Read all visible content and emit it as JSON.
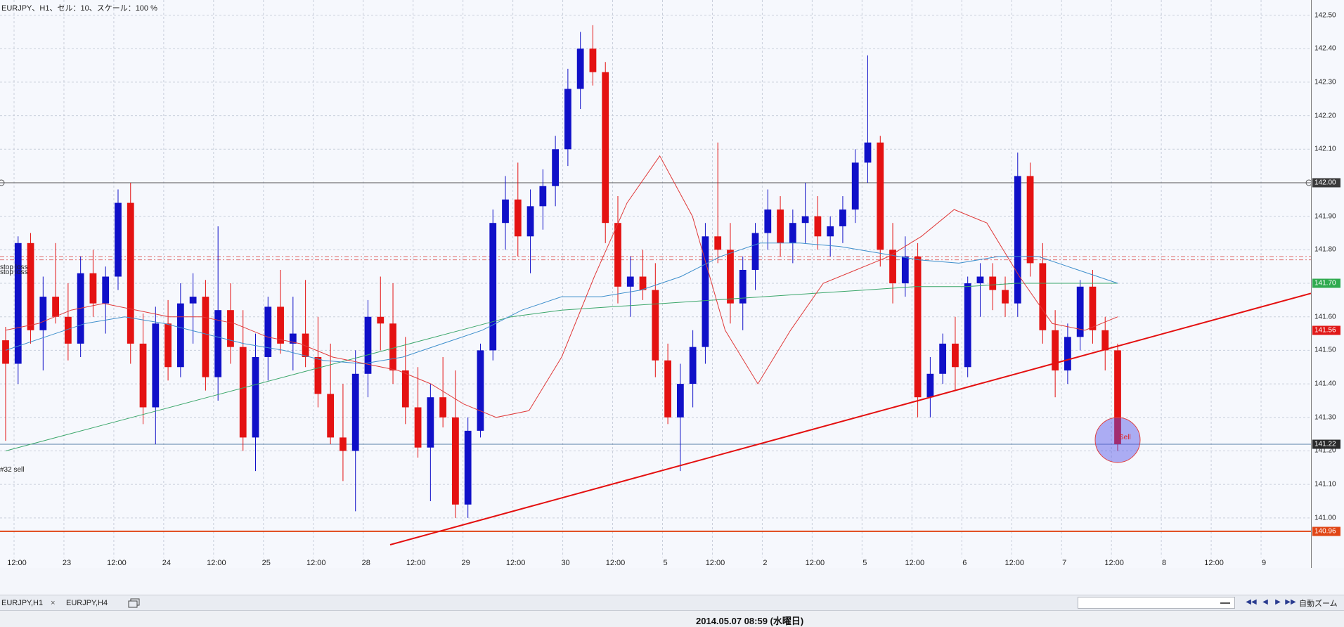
{
  "window_title": "EURJPY、H1、セル：10、スケール：100 %",
  "colors": {
    "bull": "#1010c8",
    "bear": "#e41212",
    "ma_fast": "#e03a3a",
    "ma_mid": "#3e8fcc",
    "ma_slow": "#3aa66a",
    "trendline": "#e41010",
    "grid": "#c9cfdb"
  },
  "price_axis": {
    "ticks": [
      "142.50",
      "142.40",
      "142.30",
      "142.20",
      "142.10",
      "142.00",
      "141.90",
      "141.80",
      "141.70",
      "141.60",
      "141.50",
      "141.40",
      "141.30",
      "141.20",
      "141.10",
      "141.00"
    ],
    "labels": [
      {
        "text": "142.00",
        "bg": "#3a3a3a",
        "fg": "#ffffff",
        "price": 142.0
      },
      {
        "text": "141.70",
        "bg": "#2faa4f",
        "fg": "#ffffff",
        "price": 141.7
      },
      {
        "text": "141.56",
        "bg": "#e01818",
        "fg": "#ffffff",
        "price": 141.56
      },
      {
        "text": "141.22",
        "bg": "#2a2a2a",
        "fg": "#ffffff",
        "price": 141.22
      },
      {
        "text": "140.96",
        "bg": "#e04515",
        "fg": "#ffffff",
        "price": 140.96
      }
    ]
  },
  "time_axis": {
    "labels": [
      "12:00",
      "23",
      "12:00",
      "24",
      "12:00",
      "25",
      "12:00",
      "28",
      "12:00",
      "29",
      "12:00",
      "30",
      "12:00",
      "5",
      "12:00",
      "2",
      "12:00",
      "5",
      "12:00",
      "6",
      "12:00",
      "7",
      "12:00",
      "8",
      "12:00",
      "9"
    ]
  },
  "annotations": {
    "stop_loss_1": "stop loss",
    "stop_loss_2": "stop loss",
    "order_line": "#32 sell",
    "sell_marker": "Sell"
  },
  "tabs": [
    {
      "label": "EURJPY,H1",
      "close": "×"
    },
    {
      "label": "EURJPY,H4"
    }
  ],
  "status": {
    "datetime": "2014.05.07 08:59 (水曜日)"
  },
  "nav": {
    "autozoom": "自動ズーム",
    "buttons": [
      "first",
      "prev",
      "next",
      "last"
    ]
  },
  "chart_data": {
    "type": "candlestick",
    "symbol": "EURJPY",
    "timeframe": "H1",
    "ylim": [
      140.92,
      142.52
    ],
    "horizontal_lines": [
      142.0,
      141.22,
      140.96,
      141.77,
      141.78
    ],
    "trendline": {
      "from_price": 140.92,
      "to_price": 141.67
    },
    "ohlc": [
      [
        141.53,
        141.57,
        141.23,
        141.46
      ],
      [
        141.46,
        141.84,
        141.4,
        141.82
      ],
      [
        141.82,
        141.85,
        141.52,
        141.56
      ],
      [
        141.56,
        141.72,
        141.44,
        141.66
      ],
      [
        141.66,
        141.82,
        141.58,
        141.6
      ],
      [
        141.6,
        141.7,
        141.47,
        141.52
      ],
      [
        141.52,
        141.78,
        141.48,
        141.73
      ],
      [
        141.73,
        141.8,
        141.6,
        141.64
      ],
      [
        141.64,
        141.75,
        141.55,
        141.72
      ],
      [
        141.72,
        141.98,
        141.68,
        141.94
      ],
      [
        141.94,
        142.0,
        141.46,
        141.52
      ],
      [
        141.52,
        141.61,
        141.28,
        141.33
      ],
      [
        141.33,
        141.63,
        141.22,
        141.58
      ],
      [
        141.58,
        141.65,
        141.41,
        141.45
      ],
      [
        141.45,
        141.7,
        141.42,
        141.64
      ],
      [
        141.64,
        141.73,
        141.52,
        141.66
      ],
      [
        141.66,
        141.71,
        141.38,
        141.42
      ],
      [
        141.42,
        141.87,
        141.35,
        141.62
      ],
      [
        141.62,
        141.7,
        141.46,
        141.51
      ],
      [
        141.51,
        141.62,
        141.2,
        141.24
      ],
      [
        141.24,
        141.55,
        141.14,
        141.48
      ],
      [
        141.48,
        141.66,
        141.41,
        141.63
      ],
      [
        141.63,
        141.74,
        141.49,
        141.52
      ],
      [
        141.52,
        141.66,
        141.44,
        141.55
      ],
      [
        141.55,
        141.71,
        141.45,
        141.48
      ],
      [
        141.48,
        141.6,
        141.33,
        141.37
      ],
      [
        141.37,
        141.52,
        141.22,
        141.24
      ],
      [
        141.24,
        141.4,
        141.11,
        141.2
      ],
      [
        141.2,
        141.5,
        141.02,
        141.43
      ],
      [
        141.43,
        141.65,
        141.36,
        141.6
      ],
      [
        141.6,
        141.72,
        141.5,
        141.58
      ],
      [
        141.58,
        141.7,
        141.4,
        141.44
      ],
      [
        141.44,
        141.54,
        141.28,
        141.33
      ],
      [
        141.33,
        141.45,
        141.18,
        141.21
      ],
      [
        141.21,
        141.4,
        141.05,
        141.36
      ],
      [
        141.36,
        141.48,
        141.27,
        141.3
      ],
      [
        141.3,
        141.44,
        141.0,
        141.04
      ],
      [
        141.04,
        141.3,
        141.0,
        141.26
      ],
      [
        141.26,
        141.52,
        141.24,
        141.5
      ],
      [
        141.5,
        141.92,
        141.47,
        141.88
      ],
      [
        141.88,
        142.02,
        141.8,
        141.95
      ],
      [
        141.95,
        142.06,
        141.78,
        141.84
      ],
      [
        141.84,
        141.98,
        141.73,
        141.93
      ],
      [
        141.93,
        142.04,
        141.86,
        141.99
      ],
      [
        141.99,
        142.14,
        141.93,
        142.1
      ],
      [
        142.1,
        142.34,
        142.05,
        142.28
      ],
      [
        142.28,
        142.45,
        142.22,
        142.4
      ],
      [
        142.4,
        142.47,
        142.29,
        142.33
      ],
      [
        142.33,
        142.36,
        141.82,
        141.88
      ],
      [
        141.88,
        141.96,
        141.64,
        141.69
      ],
      [
        141.69,
        141.78,
        141.6,
        141.72
      ],
      [
        141.72,
        141.8,
        141.65,
        141.68
      ],
      [
        141.68,
        141.76,
        141.42,
        141.47
      ],
      [
        141.47,
        141.52,
        141.28,
        141.3
      ],
      [
        141.3,
        141.46,
        141.14,
        141.4
      ],
      [
        141.4,
        141.56,
        141.33,
        141.51
      ],
      [
        141.51,
        141.88,
        141.46,
        141.84
      ],
      [
        141.84,
        142.12,
        141.76,
        141.8
      ],
      [
        141.8,
        141.88,
        141.58,
        141.64
      ],
      [
        141.64,
        141.78,
        141.56,
        141.74
      ],
      [
        141.74,
        141.88,
        141.68,
        141.85
      ],
      [
        141.85,
        141.98,
        141.8,
        141.92
      ],
      [
        141.92,
        141.96,
        141.78,
        141.82
      ],
      [
        141.82,
        141.92,
        141.76,
        141.88
      ],
      [
        141.88,
        142.0,
        141.82,
        141.9
      ],
      [
        141.9,
        141.96,
        141.8,
        141.84
      ],
      [
        141.84,
        141.9,
        141.78,
        141.87
      ],
      [
        141.87,
        141.96,
        141.82,
        141.92
      ],
      [
        141.92,
        142.1,
        141.88,
        142.06
      ],
      [
        142.06,
        142.38,
        142.0,
        142.12
      ],
      [
        142.12,
        142.14,
        141.75,
        141.8
      ],
      [
        141.8,
        141.88,
        141.64,
        141.7
      ],
      [
        141.7,
        141.84,
        141.66,
        141.78
      ],
      [
        141.78,
        141.82,
        141.3,
        141.36
      ],
      [
        141.36,
        141.48,
        141.3,
        141.43
      ],
      [
        141.43,
        141.55,
        141.4,
        141.52
      ],
      [
        141.52,
        141.6,
        141.38,
        141.45
      ],
      [
        141.45,
        141.72,
        141.42,
        141.7
      ],
      [
        141.7,
        141.76,
        141.6,
        141.72
      ],
      [
        141.72,
        141.76,
        141.62,
        141.68
      ],
      [
        141.68,
        141.72,
        141.6,
        141.64
      ],
      [
        141.64,
        142.09,
        141.6,
        142.02
      ],
      [
        142.02,
        142.06,
        141.72,
        141.76
      ],
      [
        141.76,
        141.82,
        141.52,
        141.56
      ],
      [
        141.56,
        141.62,
        141.36,
        141.44
      ],
      [
        141.44,
        141.58,
        141.4,
        141.54
      ],
      [
        141.54,
        141.71,
        141.5,
        141.69
      ],
      [
        141.69,
        141.74,
        141.52,
        141.56
      ],
      [
        141.56,
        141.6,
        141.44,
        141.5
      ],
      [
        141.5,
        141.52,
        141.2,
        141.22
      ]
    ],
    "ma_fast": [
      141.56,
      141.58,
      141.62,
      141.64,
      141.62,
      141.6,
      141.6,
      141.58,
      141.54,
      141.52,
      141.48,
      141.46,
      141.44,
      141.4,
      141.34,
      141.3,
      141.32,
      141.48,
      141.72,
      141.94,
      142.08,
      141.9,
      141.56,
      141.4,
      141.56,
      141.7,
      141.74,
      141.78,
      141.84,
      141.92,
      141.88,
      141.72,
      141.58,
      141.56,
      141.6
    ],
    "ma_mid": [
      141.5,
      141.54,
      141.58,
      141.6,
      141.58,
      141.55,
      141.52,
      141.5,
      141.47,
      141.46,
      141.48,
      141.52,
      141.56,
      141.62,
      141.66,
      141.66,
      141.68,
      141.72,
      141.78,
      141.82,
      141.82,
      141.81,
      141.79,
      141.77,
      141.76,
      141.78,
      141.78,
      141.74,
      141.7
    ],
    "ma_slow": [
      141.2,
      141.24,
      141.28,
      141.32,
      141.36,
      141.4,
      141.44,
      141.48,
      141.52,
      141.56,
      141.6,
      141.62,
      141.63,
      141.64,
      141.65,
      141.66,
      141.67,
      141.68,
      141.69,
      141.69,
      141.7,
      141.7,
      141.7
    ]
  }
}
